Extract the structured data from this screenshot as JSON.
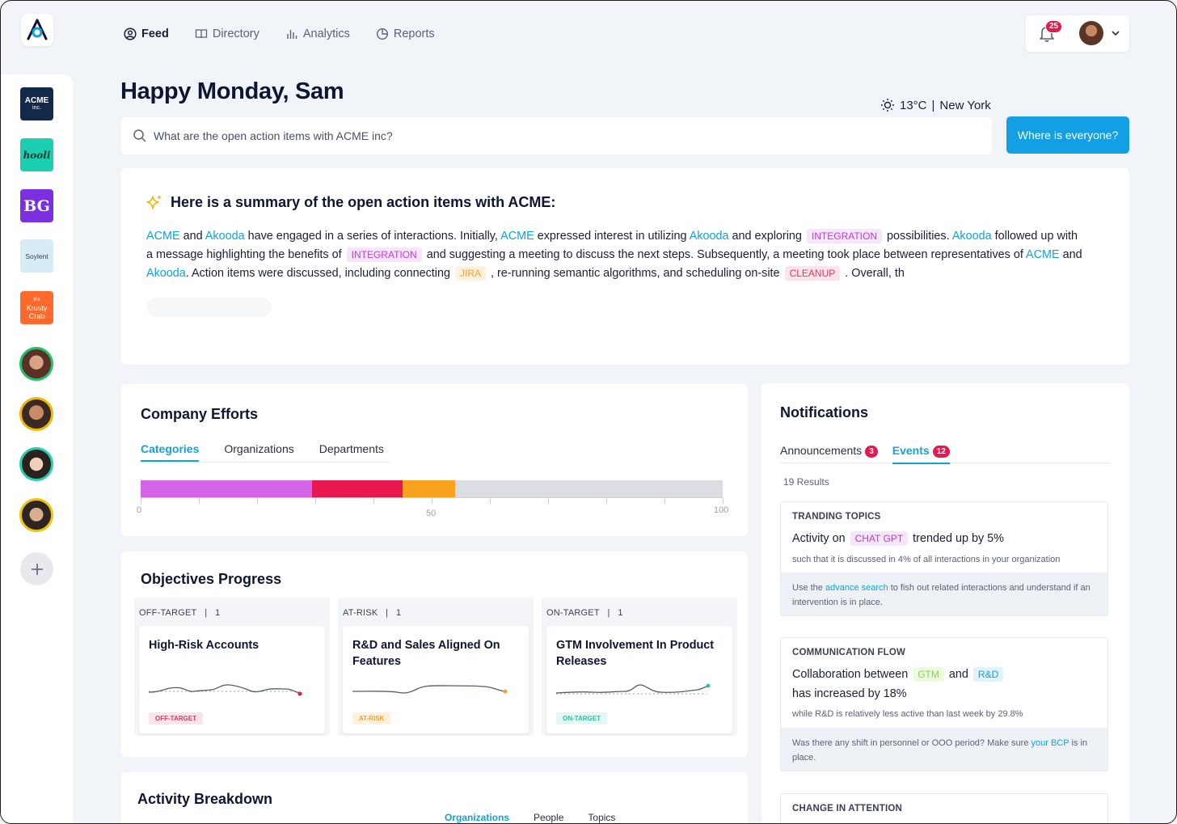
{
  "nav": {
    "items": [
      {
        "label": "Feed",
        "icon": "user-circle-icon",
        "active": true
      },
      {
        "label": "Directory",
        "icon": "book-icon",
        "active": false
      },
      {
        "label": "Analytics",
        "icon": "bar-chart-icon",
        "active": false
      },
      {
        "label": "Reports",
        "icon": "pie-chart-icon",
        "active": false
      }
    ],
    "notification_count": "25"
  },
  "sidebar": {
    "companies": [
      {
        "label": "ACME",
        "sub": "inc.",
        "color": "#13294b"
      },
      {
        "label": "hooli",
        "color": "#1ccfb0"
      },
      {
        "label": "BG",
        "color": "#7b2fe0"
      },
      {
        "label": "Soylent",
        "color": "#d8ecf8"
      },
      {
        "label": "Krusty Crab",
        "sub": "the",
        "color": "#ff6a2c"
      }
    ],
    "people_ring_colors": [
      "#22c06b",
      "#f2b705",
      "#21d0b2",
      "#f2c20a"
    ]
  },
  "greeting": "Happy Monday, Sam",
  "weather": {
    "temp": "13°C",
    "separator": "|",
    "city": "New York"
  },
  "search": {
    "query": "What are the open action items with ACME inc?"
  },
  "where_button": "Where is everyone?",
  "summary": {
    "title": "Here is a summary of the open action items with ACME:",
    "parts": {
      "acme": "ACME",
      "akooda": "Akooda",
      "integration": "INTEGRATION",
      "jira": "JIRA",
      "cleanup": "CLEANUP",
      "t1": " and ",
      "t2": " have engaged in a series of interactions. Initially, ",
      "t3": " expressed interest in utilizing ",
      "t4": " and exploring ",
      "t5": " possibilities. ",
      "t6": " followed up with a message highlighting the benefits of ",
      "t7": " and suggesting a meeting to discuss the next steps. Subsequently, a meeting took place between representatives of ",
      "t8": " and ",
      "t9": ". Action items were discussed, including connecting ",
      "t10": " , re-running semantic algorithms, and scheduling on-site ",
      "t11": " . Overall, th"
    }
  },
  "company_efforts": {
    "title": "Company Efforts",
    "tabs": [
      "Categories",
      "Organizations",
      "Departments"
    ],
    "active_tab": "Categories",
    "segments": [
      {
        "value": 29.5,
        "color": "#d565e8"
      },
      {
        "value": 15.5,
        "color": "#e8174d"
      },
      {
        "value": 9,
        "color": "#f9a21d"
      }
    ],
    "axis": {
      "min": "0",
      "mid": "50",
      "max": "100"
    }
  },
  "objectives": {
    "title": "Objectives Progress",
    "columns": [
      {
        "status": "OFF-TARGET",
        "count": "1",
        "title": "High-Risk Accounts",
        "badge": "OFF-TARGET",
        "badge_bg": "#fde4ea",
        "badge_fg": "#e8345f",
        "dot": "#e8174d"
      },
      {
        "status": "AT-RISK",
        "count": "1",
        "title": "R&D and Sales Aligned On Features",
        "badge": "AT-RISK",
        "badge_bg": "#fff1dc",
        "badge_fg": "#f0a128",
        "dot": "#f9a21d"
      },
      {
        "status": "ON-TARGET",
        "count": "1",
        "title": "GTM Involvement In Product Releases",
        "badge": "ON-TARGET",
        "badge_bg": "#e3f8f2",
        "badge_fg": "#21c7a0",
        "dot": "#21c7a0"
      }
    ],
    "separator": "|"
  },
  "activity": {
    "title": "Activity Breakdown",
    "tabs": [
      "Organizations",
      "People",
      "Topics"
    ]
  },
  "notifications": {
    "title": "Notifications",
    "tabs": [
      {
        "label": "Announcements",
        "count": "3"
      },
      {
        "label": "Events",
        "count": "12"
      }
    ],
    "results": "19 Results",
    "cards": [
      {
        "heading": "TRANDING TOPICS",
        "pre": "Activity on",
        "tag": "CHAT GPT",
        "post": "trended up by 5%",
        "sub": "such that it is discussed in 4% of all interactions in your organization",
        "foot_pre": "Use the ",
        "foot_link": "advance search",
        "foot_post": " to fish out related interactions and understand if an intervention is in place."
      },
      {
        "heading": "COMMUNICATION FLOW",
        "pre": "Collaboration between",
        "tag1": "GTM",
        "mid": "and",
        "tag2": "R&D",
        "line2": "has increased by 18%",
        "sub": "while R&D is relatively less active than last week by 29.8%",
        "foot_pre": "Was there any shift in personnel or OOO period? Make sure ",
        "foot_link": "your BCP",
        "foot_post": " is in place."
      },
      {
        "heading": "CHANGE IN ATTENTION"
      }
    ]
  }
}
